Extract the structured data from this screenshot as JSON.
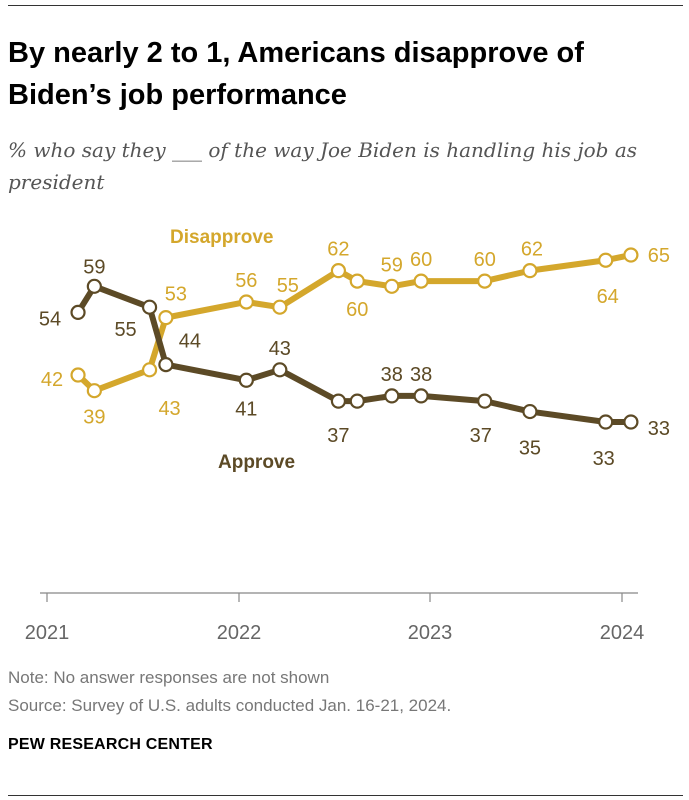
{
  "title": "By nearly 2 to 1, Americans disapprove of Biden’s job performance",
  "subtitle": "% who say they ___ of the way Joe Biden is handling his job as president",
  "note": "Note: No answer responses are not shown",
  "source": "Source: Survey of U.S. adults conducted Jan. 16-21, 2024.",
  "brand": "PEW RESEARCH CENTER",
  "colors": {
    "approve": "#5c4a26",
    "disapprove": "#d4a72c",
    "axis": "#888888",
    "text": "#555555"
  },
  "chart_data": {
    "type": "line",
    "x_ticks": [
      "2021",
      "2022",
      "2023",
      "2024"
    ],
    "xlim": [
      "2021-01-01",
      "2024-02-01"
    ],
    "grid": false,
    "series": [
      {
        "name": "Approve",
        "color": "#5c4a26",
        "x": [
          "2021-03-01",
          "2021-04-01",
          "2021-07-15",
          "2021-08-15",
          "2022-01-15",
          "2022-03-20",
          "2022-07-10",
          "2022-08-15",
          "2022-10-20",
          "2022-12-15",
          "2023-04-15",
          "2023-07-10",
          "2023-12-01",
          "2024-01-18"
        ],
        "values": [
          54,
          59,
          55,
          44,
          41,
          43,
          37,
          37,
          38,
          38,
          37,
          35,
          33,
          33
        ],
        "labels": [
          "54",
          "59",
          "55",
          "44",
          "41",
          "43",
          "37",
          "",
          "38",
          "38",
          "37",
          "35",
          "33",
          "33"
        ]
      },
      {
        "name": "Disapprove",
        "color": "#d4a72c",
        "x": [
          "2021-03-01",
          "2021-04-01",
          "2021-07-15",
          "2021-08-15",
          "2022-01-15",
          "2022-03-20",
          "2022-07-10",
          "2022-08-15",
          "2022-10-20",
          "2022-12-15",
          "2023-04-15",
          "2023-07-10",
          "2023-12-01",
          "2024-01-18"
        ],
        "values": [
          42,
          39,
          43,
          53,
          56,
          55,
          62,
          60,
          59,
          60,
          60,
          62,
          64,
          65
        ],
        "labels": [
          "42",
          "39",
          "43",
          "53",
          "56",
          "55",
          "62",
          "60",
          "59",
          "60",
          "60",
          "62",
          "64",
          "65"
        ]
      }
    ]
  }
}
